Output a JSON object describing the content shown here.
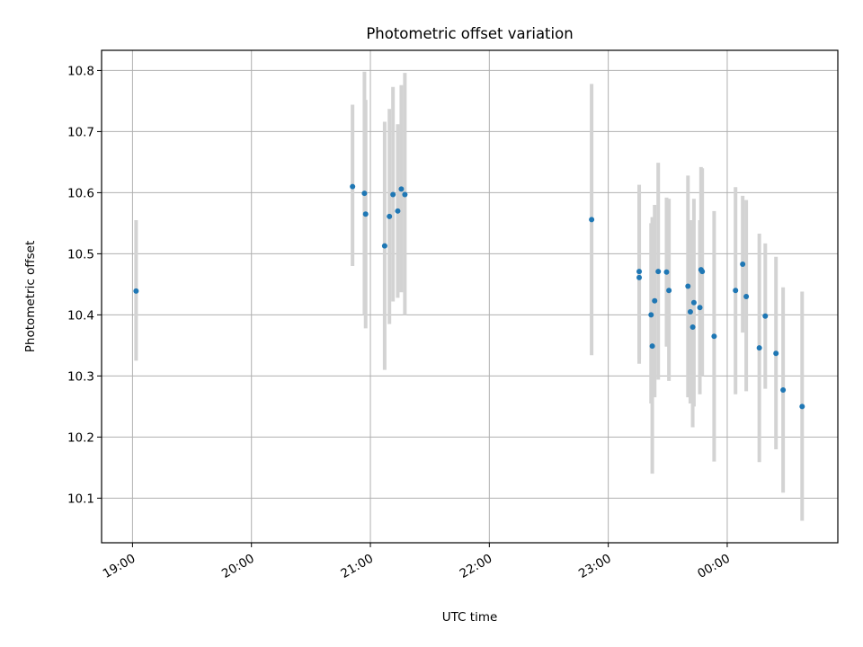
{
  "chart_data": {
    "type": "scatter",
    "title": "Photometric offset variation",
    "xlabel": "UTC time",
    "ylabel": "Photometric offset",
    "x_unit": "hours since 00:00 of first night (values > 24 are after midnight)",
    "xlim": [
      18.74,
      24.93
    ],
    "ylim": [
      10.027,
      10.833
    ],
    "x_ticks": [
      {
        "value": 19,
        "label": "19:00"
      },
      {
        "value": 20,
        "label": "20:00"
      },
      {
        "value": 21,
        "label": "21:00"
      },
      {
        "value": 22,
        "label": "22:00"
      },
      {
        "value": 23,
        "label": "23:00"
      },
      {
        "value": 24,
        "label": "00:00"
      }
    ],
    "y_ticks": [
      {
        "value": 10.1,
        "label": "10.1"
      },
      {
        "value": 10.2,
        "label": "10.2"
      },
      {
        "value": 10.3,
        "label": "10.3"
      },
      {
        "value": 10.4,
        "label": "10.4"
      },
      {
        "value": 10.5,
        "label": "10.5"
      },
      {
        "value": 10.6,
        "label": "10.6"
      },
      {
        "value": 10.7,
        "label": "10.7"
      },
      {
        "value": 10.8,
        "label": "10.8"
      }
    ],
    "grid": true,
    "colors": {
      "point": "#1f77b4",
      "errorbar": "#d3d3d3"
    },
    "points": [
      {
        "x": 19.03,
        "y": 10.439,
        "ylow": 10.325,
        "yhigh": 10.555
      },
      {
        "x": 20.85,
        "y": 10.61,
        "ylow": 10.48,
        "yhigh": 10.744
      },
      {
        "x": 20.95,
        "y": 10.599,
        "ylow": 10.4,
        "yhigh": 10.798
      },
      {
        "x": 20.96,
        "y": 10.565,
        "ylow": 10.378,
        "yhigh": 10.752
      },
      {
        "x": 21.12,
        "y": 10.513,
        "ylow": 10.31,
        "yhigh": 10.716
      },
      {
        "x": 21.16,
        "y": 10.561,
        "ylow": 10.385,
        "yhigh": 10.737
      },
      {
        "x": 21.19,
        "y": 10.597,
        "ylow": 10.422,
        "yhigh": 10.773
      },
      {
        "x": 21.23,
        "y": 10.57,
        "ylow": 10.428,
        "yhigh": 10.712
      },
      {
        "x": 21.26,
        "y": 10.606,
        "ylow": 10.437,
        "yhigh": 10.776
      },
      {
        "x": 21.29,
        "y": 10.597,
        "ylow": 10.4,
        "yhigh": 10.796
      },
      {
        "x": 22.86,
        "y": 10.556,
        "ylow": 10.334,
        "yhigh": 10.778
      },
      {
        "x": 23.26,
        "y": 10.471,
        "ylow": 10.328,
        "yhigh": 10.613
      },
      {
        "x": 23.26,
        "y": 10.461,
        "ylow": 10.32,
        "yhigh": 10.602
      },
      {
        "x": 23.36,
        "y": 10.4,
        "ylow": 10.255,
        "yhigh": 10.55
      },
      {
        "x": 23.37,
        "y": 10.349,
        "ylow": 10.14,
        "yhigh": 10.56
      },
      {
        "x": 23.39,
        "y": 10.423,
        "ylow": 10.265,
        "yhigh": 10.58
      },
      {
        "x": 23.42,
        "y": 10.471,
        "ylow": 10.294,
        "yhigh": 10.649
      },
      {
        "x": 23.49,
        "y": 10.47,
        "ylow": 10.348,
        "yhigh": 10.592
      },
      {
        "x": 23.51,
        "y": 10.44,
        "ylow": 10.292,
        "yhigh": 10.59
      },
      {
        "x": 23.67,
        "y": 10.447,
        "ylow": 10.265,
        "yhigh": 10.628
      },
      {
        "x": 23.69,
        "y": 10.405,
        "ylow": 10.255,
        "yhigh": 10.555
      },
      {
        "x": 23.71,
        "y": 10.38,
        "ylow": 10.216,
        "yhigh": 10.545
      },
      {
        "x": 23.72,
        "y": 10.42,
        "ylow": 10.25,
        "yhigh": 10.59
      },
      {
        "x": 23.77,
        "y": 10.412,
        "ylow": 10.27,
        "yhigh": 10.555
      },
      {
        "x": 23.78,
        "y": 10.474,
        "ylow": 10.306,
        "yhigh": 10.642
      },
      {
        "x": 23.79,
        "y": 10.471,
        "ylow": 10.3,
        "yhigh": 10.64
      },
      {
        "x": 23.89,
        "y": 10.365,
        "ylow": 10.16,
        "yhigh": 10.57
      },
      {
        "x": 24.07,
        "y": 10.44,
        "ylow": 10.27,
        "yhigh": 10.609
      },
      {
        "x": 24.13,
        "y": 10.483,
        "ylow": 10.371,
        "yhigh": 10.595
      },
      {
        "x": 24.16,
        "y": 10.43,
        "ylow": 10.275,
        "yhigh": 10.588
      },
      {
        "x": 24.27,
        "y": 10.346,
        "ylow": 10.159,
        "yhigh": 10.533
      },
      {
        "x": 24.32,
        "y": 10.398,
        "ylow": 10.279,
        "yhigh": 10.517
      },
      {
        "x": 24.41,
        "y": 10.337,
        "ylow": 10.18,
        "yhigh": 10.495
      },
      {
        "x": 24.47,
        "y": 10.277,
        "ylow": 10.109,
        "yhigh": 10.445
      },
      {
        "x": 24.63,
        "y": 10.25,
        "ylow": 10.063,
        "yhigh": 10.438
      }
    ]
  }
}
